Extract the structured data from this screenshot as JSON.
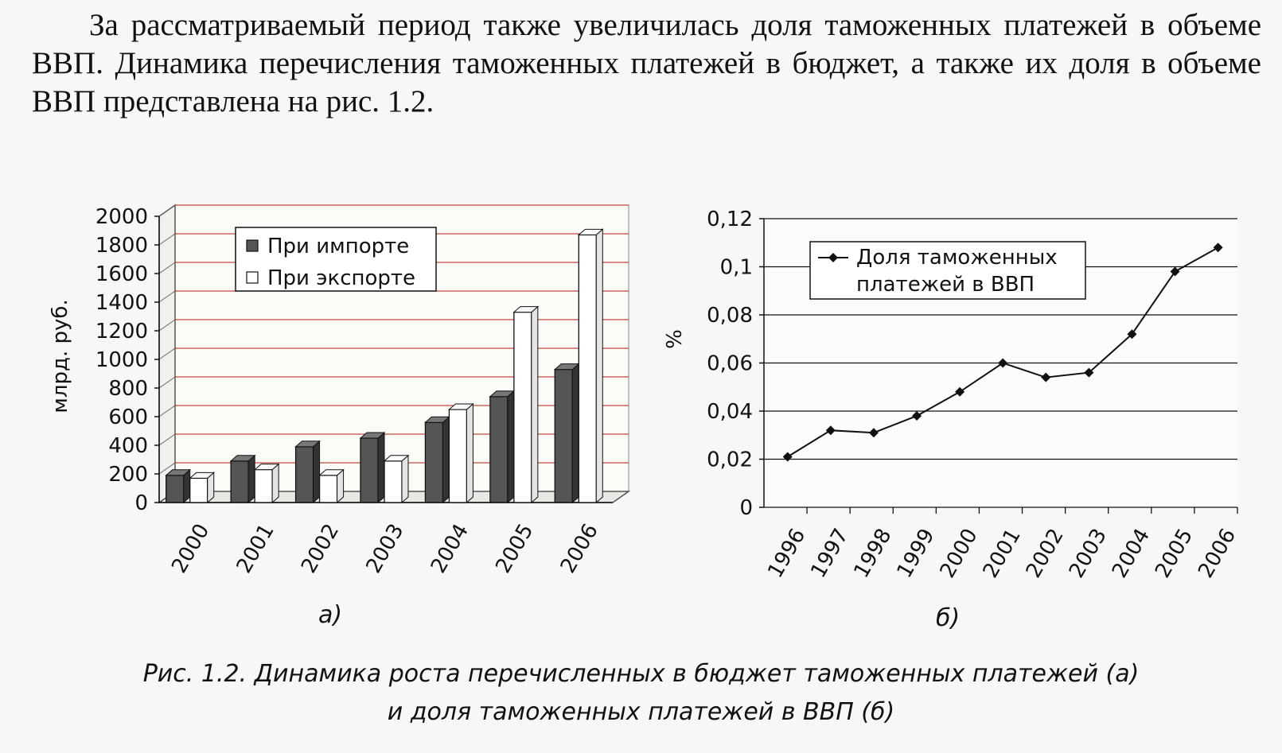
{
  "paragraph": "За рассматриваемый период также увеличилась доля таможенных платежей в объеме ВВП. Динамика перечисления таможенных платежей в бюджет, а также их доля в объеме ВВП представлена на рис. 1.2.",
  "figure": {
    "label_a": "а)",
    "label_b": "б)",
    "caption_line1": "Рис. 1.2. Динамика роста перечисленных в бюджет таможенных платежей (а)",
    "caption_line2": "и доля таможенных платежей в ВВП (б)"
  },
  "chart_data": [
    {
      "type": "bar",
      "subplot": "а)",
      "categories": [
        "2000",
        "2001",
        "2002",
        "2003",
        "2004",
        "2005",
        "2006"
      ],
      "series": [
        {
          "name": "При импорте",
          "values": [
            190,
            290,
            390,
            450,
            560,
            740,
            930
          ],
          "color": "#555555"
        },
        {
          "name": "При экспорте",
          "values": [
            170,
            230,
            190,
            290,
            650,
            1330,
            1870
          ],
          "color": "#ffffff"
        }
      ],
      "ylabel": "млрд. руб.",
      "xlabel": "",
      "ylim": [
        0,
        2000
      ],
      "yticks": [
        "0",
        "200",
        "400",
        "600",
        "800",
        "1000",
        "1200",
        "1400",
        "1600",
        "1800",
        "2000"
      ],
      "grid": true,
      "grid_color": "#c04a3a",
      "legend_position": "top-left"
    },
    {
      "type": "line",
      "subplot": "б)",
      "x": [
        "1996",
        "1997",
        "1998",
        "1999",
        "2000",
        "2001",
        "2002",
        "2003",
        "2004",
        "2005",
        "2006"
      ],
      "series": [
        {
          "name": "Доля таможенных платежей в ВВП",
          "values": [
            0.021,
            0.032,
            0.031,
            0.038,
            0.048,
            0.06,
            0.054,
            0.056,
            0.072,
            0.098,
            0.108
          ],
          "color": "#111111"
        }
      ],
      "ylabel": "%",
      "xlabel": "",
      "ylim": [
        0,
        0.12
      ],
      "yticks": [
        "0",
        "0,02",
        "0,04",
        "0,06",
        "0,08",
        "0,1",
        "0,12"
      ],
      "grid": true,
      "legend_line1": "Доля таможенных",
      "legend_line2": "платежей в ВВП",
      "legend_position": "top-left"
    }
  ]
}
